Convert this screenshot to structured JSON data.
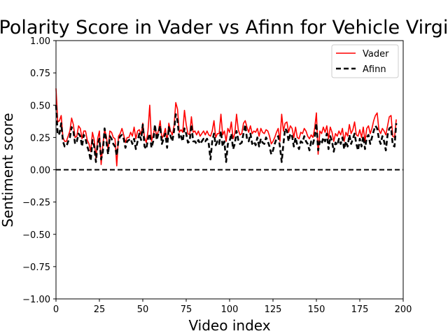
{
  "chart_data": {
    "type": "line",
    "title": "Polarity Score in Vader vs Afinn for Vehicle Virgin",
    "xlabel": "Video index",
    "ylabel": "Sentiment score",
    "xlim": [
      0,
      200
    ],
    "ylim": [
      -1.0,
      1.0
    ],
    "xticks": [
      "0",
      "25",
      "50",
      "75",
      "100",
      "125",
      "150",
      "175",
      "200"
    ],
    "yticks": [
      "1.00",
      "0.75",
      "0.50",
      "0.25",
      "0.00",
      "−0.25",
      "−0.50",
      "−0.75",
      "−1.00"
    ],
    "grid": false,
    "legend_position": "upper right",
    "reference_line": {
      "y": 0.0,
      "style": "dashed",
      "color": "#000000"
    },
    "series": [
      {
        "name": "Vader",
        "color": "#ff0000",
        "style": "solid",
        "x_start": 0,
        "values": [
          0.63,
          0.37,
          0.38,
          0.42,
          0.25,
          0.22,
          0.22,
          0.26,
          0.3,
          0.4,
          0.35,
          0.25,
          0.26,
          0.34,
          0.32,
          0.24,
          0.3,
          0.3,
          0.23,
          0.2,
          0.14,
          0.29,
          0.23,
          0.09,
          0.24,
          0.3,
          0.04,
          0.2,
          0.31,
          0.26,
          0.15,
          0.3,
          0.29,
          0.25,
          0.24,
          0.03,
          0.26,
          0.28,
          0.32,
          0.27,
          0.21,
          0.25,
          0.25,
          0.29,
          0.26,
          0.33,
          0.24,
          0.3,
          0.31,
          0.27,
          0.36,
          0.25,
          0.21,
          0.3,
          0.5,
          0.22,
          0.27,
          0.33,
          0.26,
          0.3,
          0.38,
          0.24,
          0.27,
          0.32,
          0.22,
          0.36,
          0.3,
          0.27,
          0.34,
          0.52,
          0.47,
          0.29,
          0.31,
          0.29,
          0.46,
          0.35,
          0.28,
          0.27,
          0.41,
          0.29,
          0.3,
          0.27,
          0.3,
          0.26,
          0.28,
          0.3,
          0.27,
          0.3,
          0.27,
          0.26,
          0.3,
          0.38,
          0.25,
          0.28,
          0.28,
          0.43,
          0.27,
          0.3,
          0.22,
          0.32,
          0.29,
          0.37,
          0.24,
          0.28,
          0.43,
          0.31,
          0.27,
          0.28,
          0.36,
          0.38,
          0.33,
          0.29,
          0.34,
          0.28,
          0.3,
          0.29,
          0.32,
          0.26,
          0.32,
          0.29,
          0.28,
          0.31,
          0.3,
          0.26,
          0.2,
          0.22,
          0.25,
          0.29,
          0.32,
          0.22,
          0.43,
          0.3,
          0.36,
          0.37,
          0.29,
          0.34,
          0.32,
          0.25,
          0.33,
          0.25,
          0.24,
          0.29,
          0.28,
          0.32,
          0.3,
          0.26,
          0.24,
          0.27,
          0.25,
          0.32,
          0.44,
          0.12,
          0.3,
          0.28,
          0.33,
          0.29,
          0.34,
          0.24,
          0.33,
          0.29,
          0.22,
          0.28,
          0.26,
          0.3,
          0.27,
          0.32,
          0.22,
          0.29,
          0.26,
          0.35,
          0.28,
          0.31,
          0.37,
          0.27,
          0.26,
          0.31,
          0.25,
          0.33,
          0.22,
          0.32,
          0.34,
          0.28,
          0.32,
          0.38,
          0.42,
          0.44,
          0.31,
          0.28,
          0.32,
          0.3,
          0.27,
          0.34,
          0.41,
          0.42,
          0.26,
          0.25,
          0.39
        ]
      },
      {
        "name": "Afinn",
        "color": "#000000",
        "style": "dashed",
        "x_start": 0,
        "values": [
          0.5,
          0.27,
          0.28,
          0.36,
          0.22,
          0.18,
          0.18,
          0.22,
          0.25,
          0.33,
          0.3,
          0.2,
          0.22,
          0.28,
          0.26,
          0.18,
          0.27,
          0.24,
          0.18,
          0.14,
          0.07,
          0.23,
          0.18,
          0.06,
          0.2,
          0.24,
          0.08,
          0.14,
          0.32,
          0.22,
          0.12,
          0.26,
          0.24,
          0.2,
          0.18,
          0.11,
          0.23,
          0.26,
          0.27,
          0.24,
          0.17,
          0.22,
          0.23,
          0.24,
          0.2,
          0.24,
          0.16,
          0.22,
          0.28,
          0.23,
          0.35,
          0.18,
          0.16,
          0.24,
          0.28,
          0.17,
          0.22,
          0.35,
          0.23,
          0.28,
          0.34,
          0.2,
          0.24,
          0.28,
          0.17,
          0.33,
          0.26,
          0.22,
          0.3,
          0.43,
          0.38,
          0.24,
          0.26,
          0.22,
          0.32,
          0.28,
          0.21,
          0.22,
          0.35,
          0.22,
          0.22,
          0.2,
          0.23,
          0.2,
          0.22,
          0.24,
          0.22,
          0.24,
          0.2,
          0.08,
          0.22,
          0.28,
          0.19,
          0.22,
          0.2,
          0.3,
          0.18,
          0.22,
          0.06,
          0.2,
          0.22,
          0.28,
          0.16,
          0.2,
          0.3,
          0.23,
          0.2,
          0.21,
          0.28,
          0.35,
          0.24,
          0.22,
          0.28,
          0.2,
          0.22,
          0.19,
          0.25,
          0.18,
          0.24,
          0.21,
          0.2,
          0.25,
          0.22,
          0.18,
          0.12,
          0.15,
          0.2,
          0.24,
          0.26,
          0.18,
          0.06,
          0.2,
          0.32,
          0.3,
          0.22,
          0.28,
          0.26,
          0.18,
          0.25,
          0.19,
          0.16,
          0.22,
          0.21,
          0.26,
          0.22,
          0.2,
          0.15,
          0.22,
          0.2,
          0.25,
          0.36,
          0.15,
          0.22,
          0.2,
          0.25,
          0.22,
          0.28,
          0.16,
          0.26,
          0.22,
          0.14,
          0.21,
          0.19,
          0.24,
          0.2,
          0.25,
          0.16,
          0.22,
          0.18,
          0.27,
          0.2,
          0.24,
          0.28,
          0.2,
          0.15,
          0.24,
          0.18,
          0.26,
          0.16,
          0.25,
          0.27,
          0.2,
          0.25,
          0.3,
          0.34,
          0.32,
          0.24,
          0.2,
          0.26,
          0.22,
          0.15,
          0.27,
          0.32,
          0.33,
          0.19,
          0.18,
          0.36
        ]
      }
    ]
  }
}
